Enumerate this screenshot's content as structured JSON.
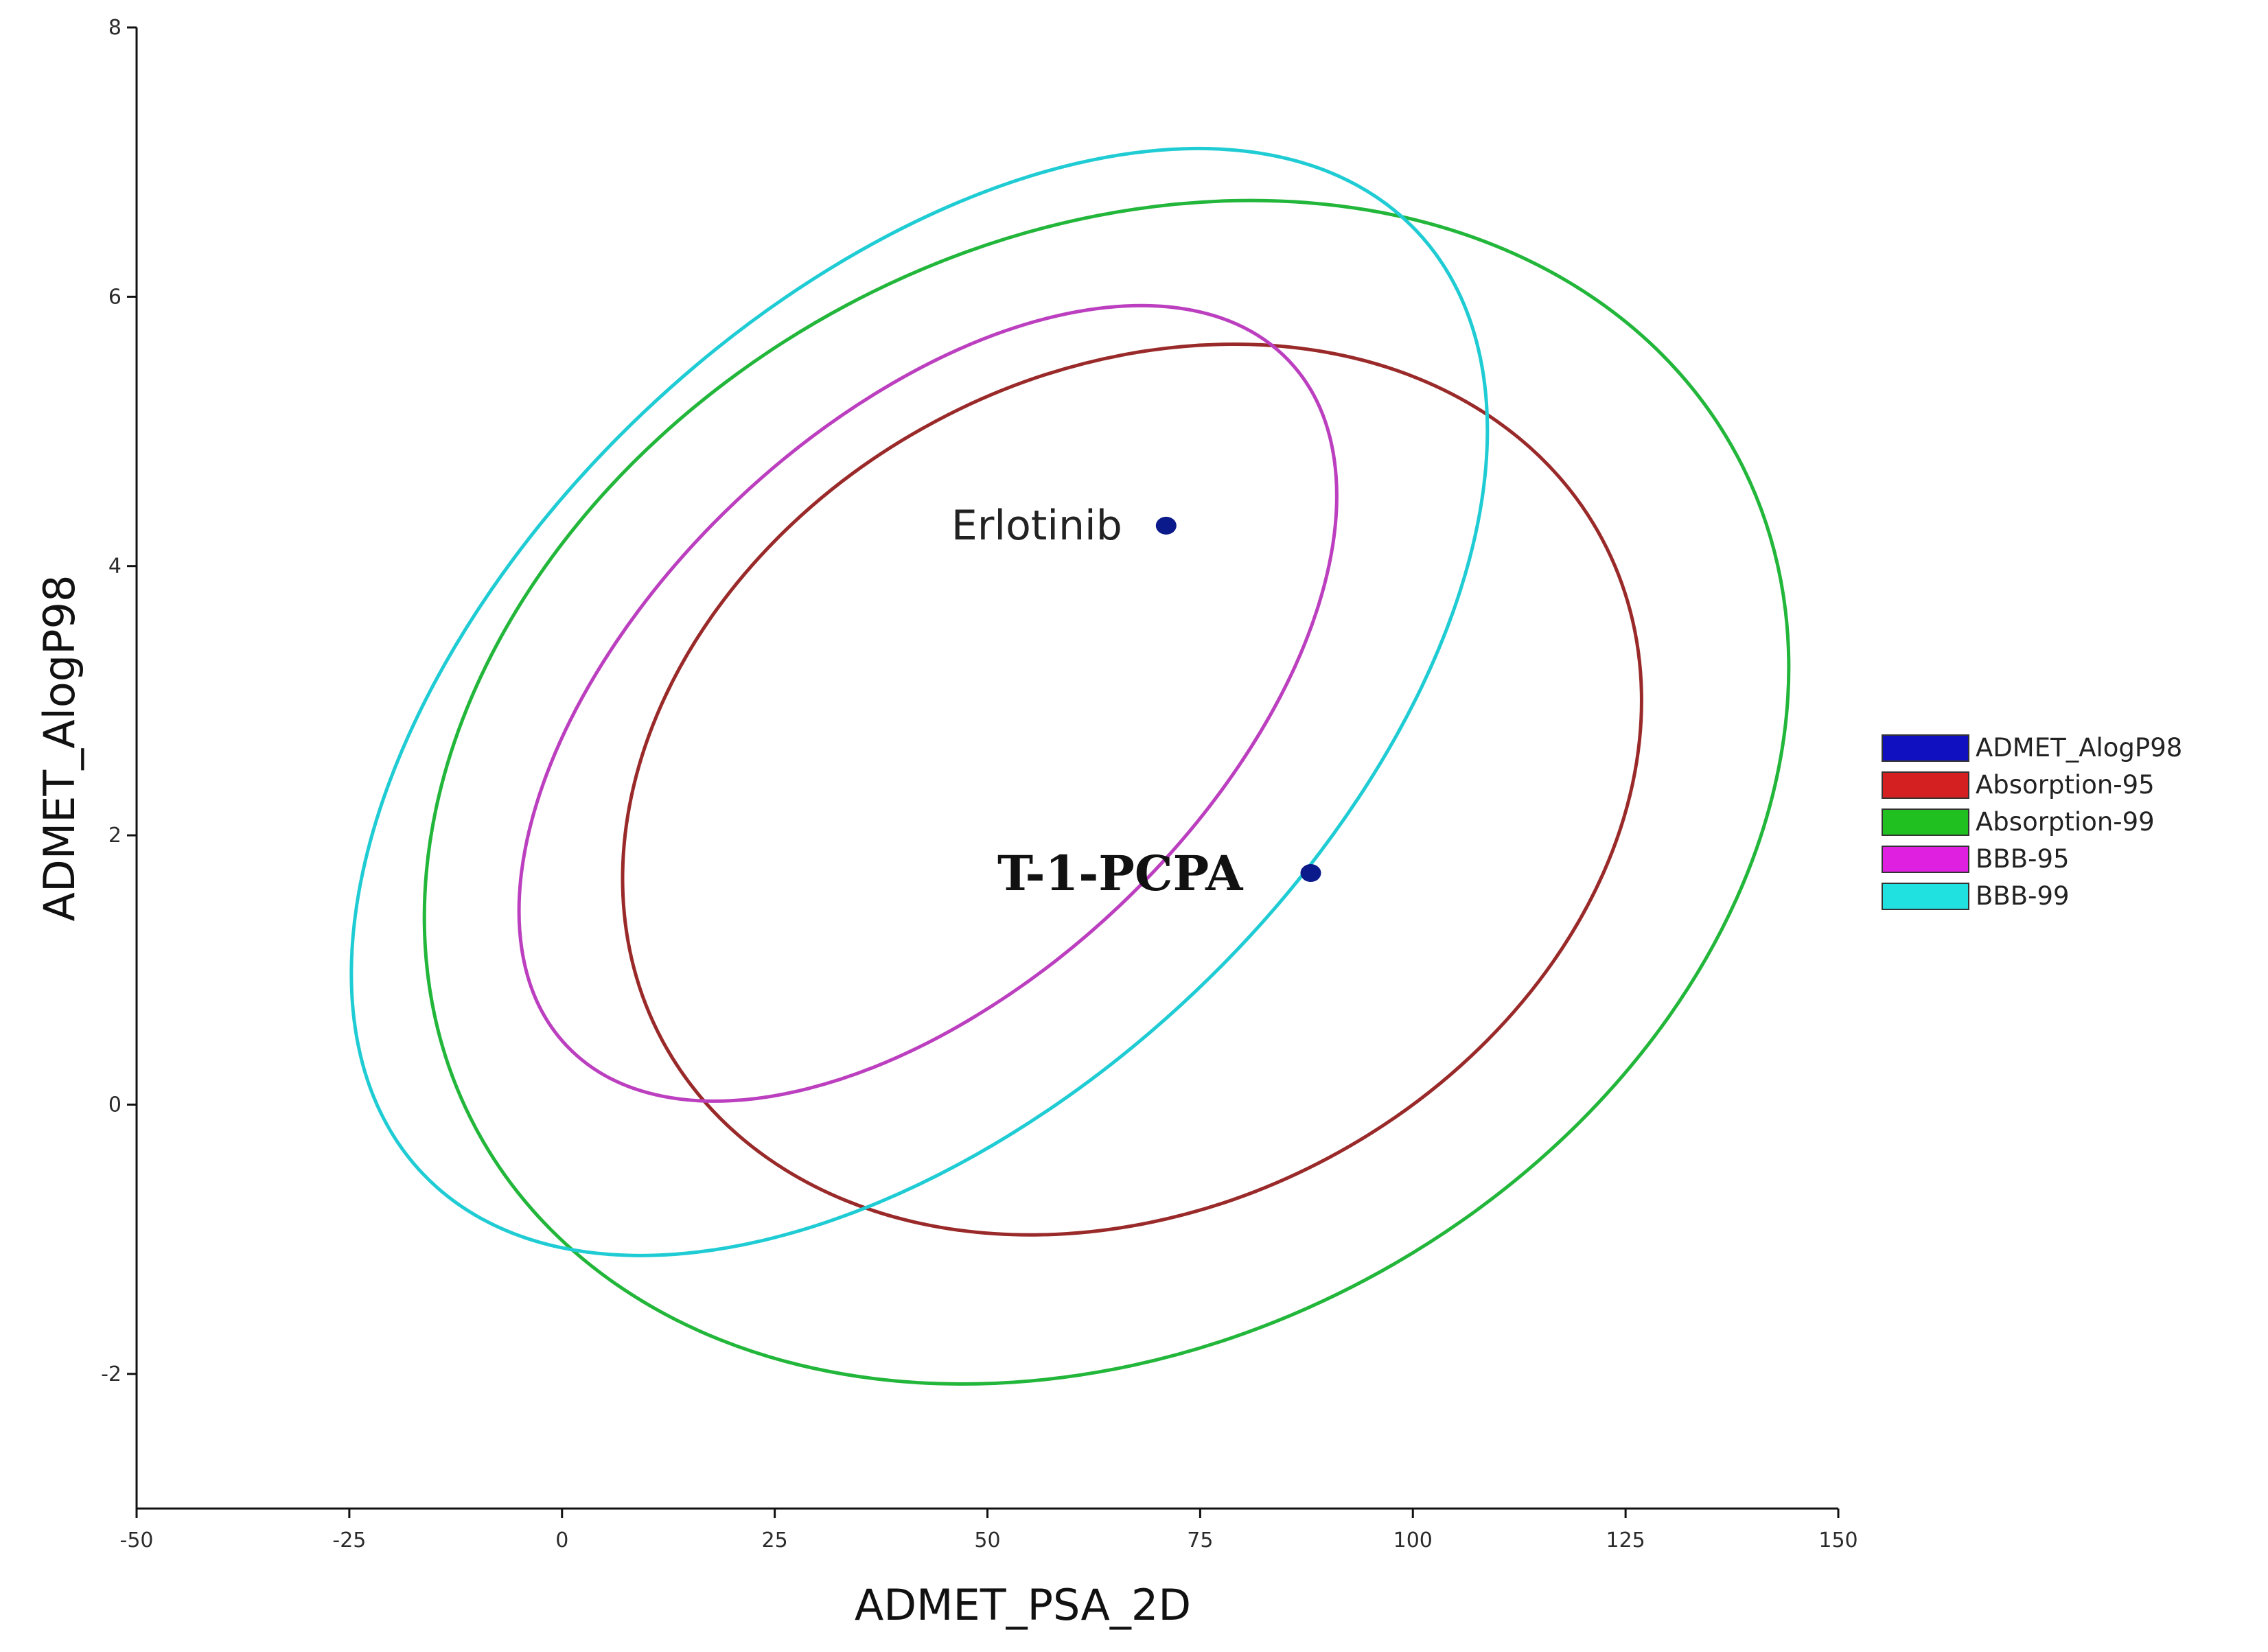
{
  "chart_data": {
    "type": "scatter",
    "title": "",
    "xlabel": "ADMET_PSA_2D",
    "ylabel": "ADMET_AlogP98",
    "xlim": [
      -50,
      150
    ],
    "ylim": [
      -3,
      8
    ],
    "x_ticks": [
      "-50",
      "-25",
      "0",
      "25",
      "50",
      "75",
      "100",
      "125",
      "150"
    ],
    "y_ticks": [
      "-2",
      "0",
      "2",
      "4",
      "6",
      "8"
    ],
    "grid": false,
    "legend_position": "right",
    "legend": [
      {
        "name": "ADMET_AlogP98",
        "color": "#1010c0"
      },
      {
        "name": "Absorption-95",
        "color": "#d42020"
      },
      {
        "name": "Absorption-99",
        "color": "#20c020"
      },
      {
        "name": "BBB-95",
        "color": "#e020e0"
      },
      {
        "name": "BBB-99",
        "color": "#20e0e0"
      }
    ],
    "ellipses": [
      {
        "name": "Absorption-95",
        "stroke": "#9a2a2a",
        "cx": 67,
        "cy": 2.34,
        "rx": 62.6,
        "ry": 3.1,
        "angle": -28
      },
      {
        "name": "Absorption-99",
        "stroke": "#22b63a",
        "cx": 64,
        "cy": 2.32,
        "rx": 84,
        "ry": 4.1,
        "angle": -28
      },
      {
        "name": "BBB-95",
        "stroke": "#bb3fbf",
        "cx": 43,
        "cy": 2.98,
        "rx": 58.5,
        "ry": 2.07,
        "angle": -43.5
      },
      {
        "name": "BBB-99",
        "stroke": "#20ccd4",
        "cx": 42,
        "cy": 2.99,
        "rx": 80.5,
        "ry": 2.97,
        "angle": -43.5
      }
    ],
    "points": [
      {
        "name": "Erlotinib",
        "x": 71,
        "y": 4.3,
        "color": "#0b1a8a"
      },
      {
        "name": "T-1-PCPA",
        "x": 88,
        "y": 1.72,
        "color": "#0b1a8a"
      }
    ]
  }
}
